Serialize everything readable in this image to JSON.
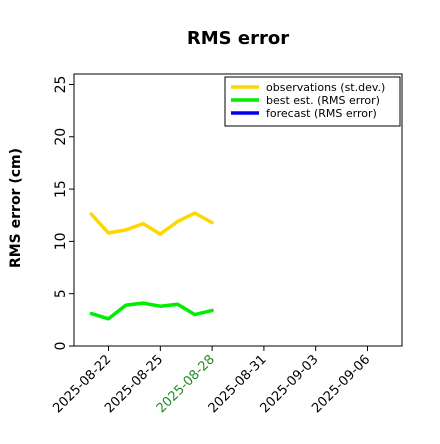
{
  "chart_data": {
    "type": "line",
    "title": "RMS error",
    "xlabel": "",
    "ylabel": "RMS error (cm)",
    "ylim": [
      0,
      26
    ],
    "yticks": [
      0,
      5,
      10,
      15,
      20,
      25
    ],
    "xlim": [
      "2025-08-20",
      "2025-09-08"
    ],
    "xticks": [
      "2025-08-22",
      "2025-08-25",
      "2025-08-28",
      "2025-08-31",
      "2025-09-03",
      "2025-09-06"
    ],
    "highlighted_xtick": "2025-08-28",
    "highlight_color": "#228b22",
    "grid": false,
    "legend_position": "top-right",
    "series": [
      {
        "name": "observations (st.dev.)",
        "color": "#ffd700",
        "x": [
          "2025-08-21",
          "2025-08-22",
          "2025-08-23",
          "2025-08-24",
          "2025-08-25",
          "2025-08-26",
          "2025-08-27",
          "2025-08-28"
        ],
        "values": [
          12.6,
          10.8,
          11.1,
          11.7,
          10.7,
          11.9,
          12.7,
          11.8
        ]
      },
      {
        "name": "best est. (RMS error)",
        "color": "#00ee00",
        "x": [
          "2025-08-21",
          "2025-08-22",
          "2025-08-23",
          "2025-08-24",
          "2025-08-25",
          "2025-08-26",
          "2025-08-27",
          "2025-08-28"
        ],
        "values": [
          3.1,
          2.6,
          3.9,
          4.1,
          3.8,
          4.0,
          3.0,
          3.4
        ]
      },
      {
        "name": "forecast (RMS error)",
        "color": "#0000ee",
        "x": [],
        "values": []
      }
    ]
  }
}
